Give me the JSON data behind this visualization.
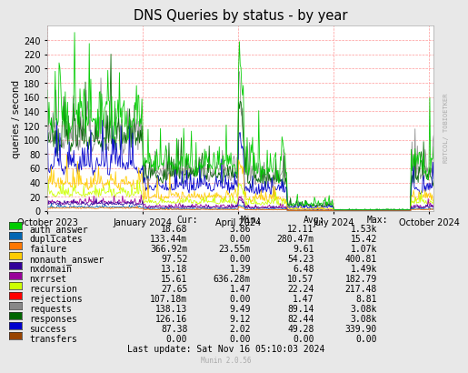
{
  "title": "DNS Queries by status - by year",
  "ylabel": "queries / second",
  "ylim": [
    0,
    260
  ],
  "yticks": [
    0,
    20,
    40,
    60,
    80,
    100,
    120,
    140,
    160,
    180,
    200,
    220,
    240
  ],
  "bg_color": "#e8e8e8",
  "plot_bg_color": "#ffffff",
  "grid_color": "#ff9999",
  "watermark": "RDTCOL/ TOBIOETKER",
  "munin_version": "Munin 2.0.56",
  "last_update": "Last update: Sat Nov 16 05:10:03 2024",
  "legend": [
    {
      "label": "auth_answer",
      "color": "#00cc00",
      "cur": "18.68",
      "min": "3.86",
      "avg": "12.11",
      "max": "1.53k"
    },
    {
      "label": "duplicates",
      "color": "#0066b3",
      "cur": "133.44m",
      "min": "0.00",
      "avg": "280.47m",
      "max": "15.42"
    },
    {
      "label": "failure",
      "color": "#ff7700",
      "cur": "366.92m",
      "min": "23.55m",
      "avg": "9.61",
      "max": "1.07k"
    },
    {
      "label": "nonauth_answer",
      "color": "#ffcc00",
      "cur": "97.52",
      "min": "0.00",
      "avg": "54.23",
      "max": "400.81"
    },
    {
      "label": "nxdomain",
      "color": "#330099",
      "cur": "13.18",
      "min": "1.39",
      "avg": "6.48",
      "max": "1.49k"
    },
    {
      "label": "nxrrset",
      "color": "#990099",
      "cur": "15.61",
      "min": "636.28m",
      "avg": "10.57",
      "max": "182.79"
    },
    {
      "label": "recursion",
      "color": "#ccff00",
      "cur": "27.65",
      "min": "1.47",
      "avg": "22.24",
      "max": "217.48"
    },
    {
      "label": "rejections",
      "color": "#ff0000",
      "cur": "107.18m",
      "min": "0.00",
      "avg": "1.47",
      "max": "8.81"
    },
    {
      "label": "requests",
      "color": "#888888",
      "cur": "138.13",
      "min": "9.49",
      "avg": "89.14",
      "max": "3.08k"
    },
    {
      "label": "responses",
      "color": "#006600",
      "cur": "126.16",
      "min": "9.12",
      "avg": "82.44",
      "max": "3.08k"
    },
    {
      "label": "success",
      "color": "#0000cc",
      "cur": "87.38",
      "min": "2.02",
      "avg": "49.28",
      "max": "339.90"
    },
    {
      "label": "transfers",
      "color": "#994400",
      "cur": "0.00",
      "min": "0.00",
      "avg": "0.00",
      "max": "0.00"
    }
  ],
  "x_tick_labels": [
    "October 2023",
    "January 2024",
    "April 2024",
    "July 2024",
    "October 2024"
  ],
  "x_tick_positions": [
    0.0,
    0.247,
    0.494,
    0.741,
    0.988
  ],
  "header_cols": [
    "Cur:",
    "Min:",
    "Avg:",
    "Max:"
  ]
}
